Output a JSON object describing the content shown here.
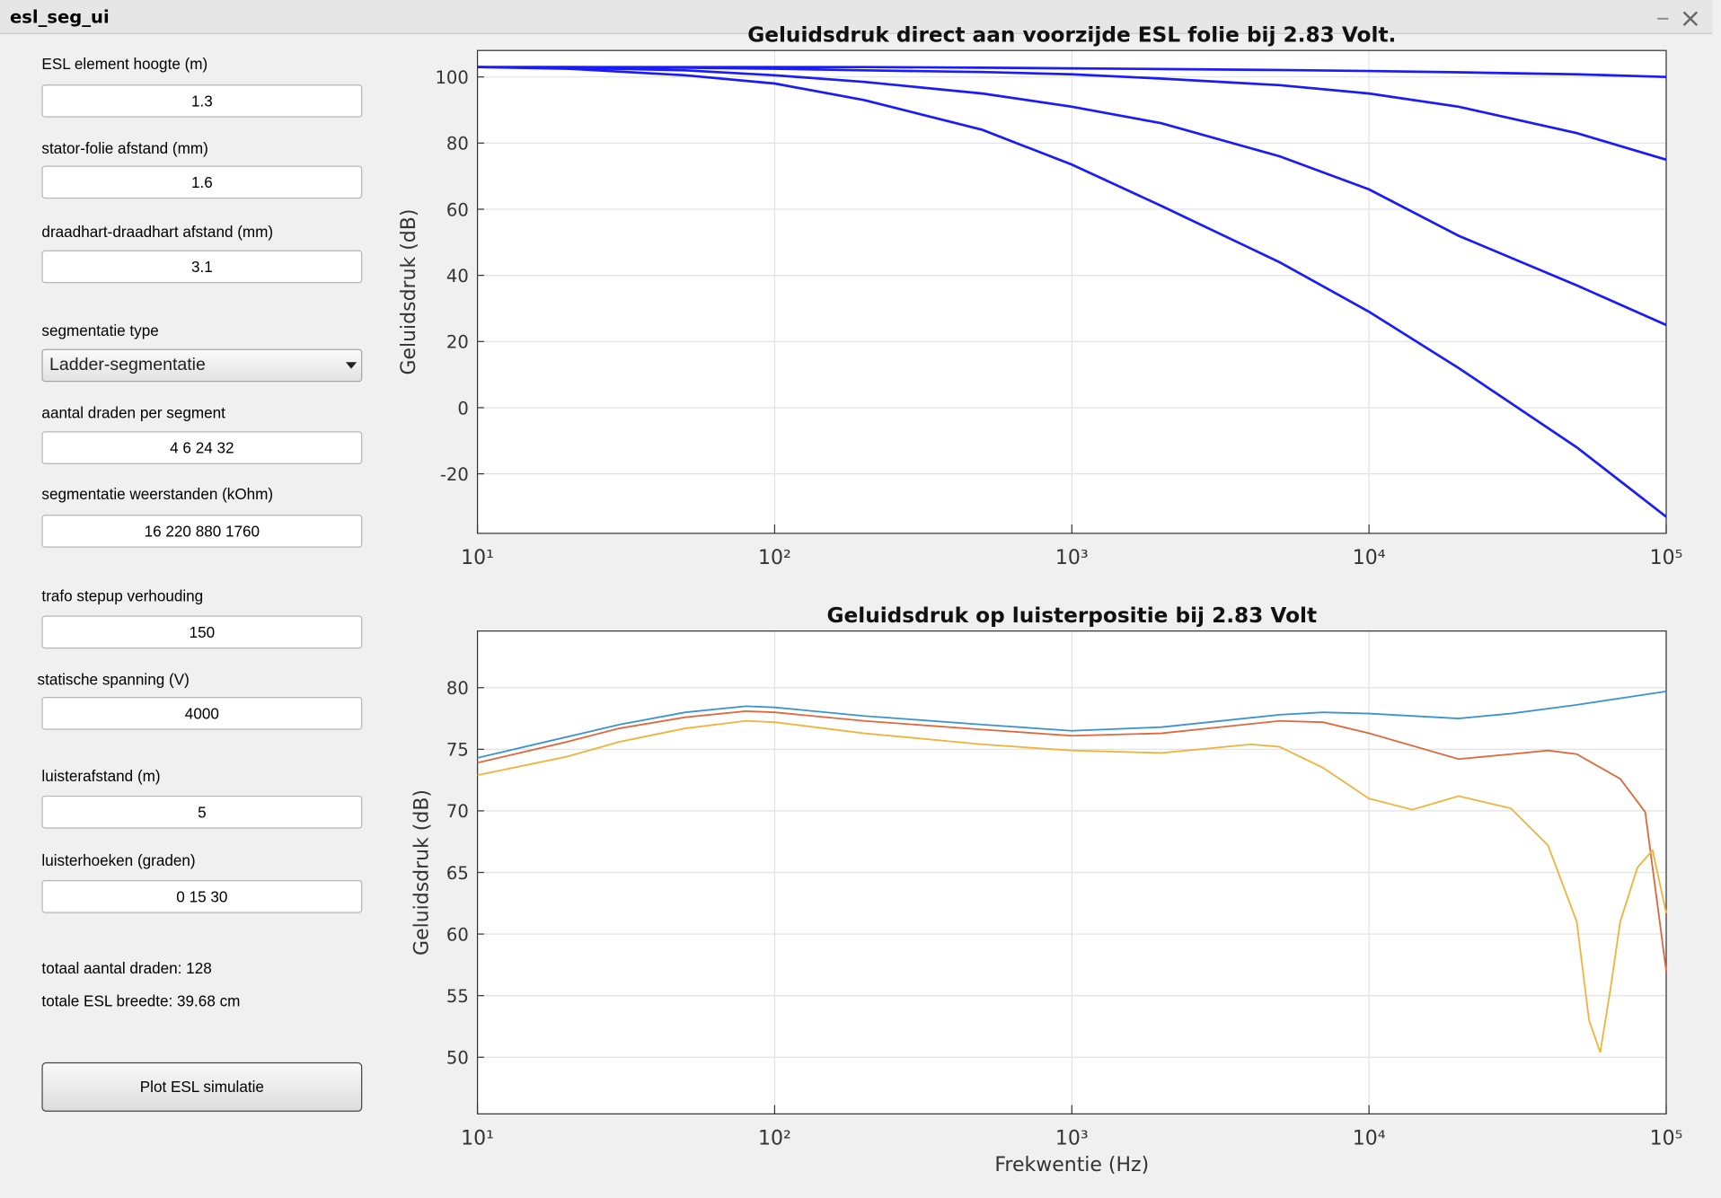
{
  "window": {
    "title": "esl_seg_ui"
  },
  "form": {
    "fields": [
      {
        "label": "ESL element hoogte (m)",
        "value": "1.3"
      },
      {
        "label": "stator-folie afstand (mm)",
        "value": "1.6"
      },
      {
        "label": "draadhart-draadhart afstand (mm)",
        "value": "3.1"
      },
      {
        "label": "segmentatie type",
        "value": "Ladder-segmentatie"
      },
      {
        "label": "aantal draden per segment",
        "value": "4 6 24 32"
      },
      {
        "label": "segmentatie weerstanden (kOhm)",
        "value": "16 220 880 1760"
      },
      {
        "label": "trafo stepup verhouding",
        "value": "150"
      },
      {
        "label": "statische  spanning (V)",
        "value": "4000"
      },
      {
        "label": "luisterafstand (m)",
        "value": "5"
      },
      {
        "label": "luisterhoeken (graden)",
        "value": "0 15 30"
      }
    ],
    "summary": [
      "totaal aantal draden: 128",
      "totale ESL breedte: 39.68 cm"
    ],
    "button": "Plot ESL simulatie"
  },
  "chart_data": [
    {
      "type": "line",
      "title": "Geluidsdruk direct aan voorzijde ESL folie bij 2.83 Volt.",
      "y_label": "Geluidsdruk (dB)",
      "log_x": true,
      "grid": true,
      "xlim": [
        10,
        100000
      ],
      "ylim": [
        -38,
        108
      ],
      "xticks": [
        {
          "value": 10,
          "label": "10¹"
        },
        {
          "value": 100,
          "label": "10²"
        },
        {
          "value": 1000,
          "label": "10³"
        },
        {
          "value": 10000,
          "label": "10⁴"
        },
        {
          "value": 100000,
          "label": "10⁵"
        }
      ],
      "yticks": [
        -20,
        0,
        20,
        40,
        60,
        80,
        100
      ],
      "x": [
        10,
        20,
        50,
        100,
        200,
        500,
        1000,
        2000,
        5000,
        10000,
        20000,
        50000,
        100000
      ],
      "series": [
        {
          "color": "#1a1aff",
          "values": [
            103,
            103,
            103,
            103,
            103,
            102.8,
            102.6,
            102.4,
            102.1,
            101.8,
            101.4,
            100.8,
            100
          ]
        },
        {
          "color": "#1a1aff",
          "values": [
            103,
            103,
            102.8,
            102.5,
            102,
            101.5,
            100.8,
            99.5,
            97.5,
            95,
            91,
            83,
            75
          ]
        },
        {
          "color": "#1a1aff",
          "values": [
            103,
            102.8,
            102,
            100.5,
            98.5,
            95,
            91,
            86,
            76,
            66,
            52,
            37,
            25
          ]
        },
        {
          "color": "#1a1aff",
          "values": [
            103,
            102.5,
            100.5,
            98,
            93,
            84,
            73.5,
            61,
            44,
            29,
            12,
            -12,
            -33
          ]
        }
      ]
    },
    {
      "type": "line",
      "title": "Geluidsdruk op luisterpositie bij 2.83 Volt",
      "x_label": "Frekwentie (Hz)",
      "y_label": "Geluidsdruk (dB)",
      "log_x": true,
      "grid": true,
      "xlim": [
        10,
        100000
      ],
      "ylim": [
        45.4,
        84.6
      ],
      "xticks": [
        {
          "value": 10,
          "label": "10¹"
        },
        {
          "value": 100,
          "label": "10²"
        },
        {
          "value": 1000,
          "label": "10³"
        },
        {
          "value": 10000,
          "label": "10⁴"
        },
        {
          "value": 100000,
          "label": "10⁵"
        }
      ],
      "yticks": [
        50,
        55,
        60,
        65,
        70,
        75,
        80
      ],
      "series": [
        {
          "color": "#3b94cf",
          "x": [
            10,
            20,
            30,
            50,
            80,
            100,
            200,
            500,
            1000,
            2000,
            5000,
            7000,
            10000,
            20000,
            30000,
            50000,
            100000
          ],
          "values": [
            74.3,
            76,
            77,
            78,
            78.5,
            78.4,
            77.7,
            77,
            76.5,
            76.8,
            77.8,
            78,
            77.9,
            77.5,
            77.9,
            78.6,
            79.7
          ]
        },
        {
          "color": "#e0683c",
          "x": [
            10,
            20,
            30,
            50,
            80,
            100,
            200,
            500,
            1000,
            2000,
            5000,
            7000,
            10000,
            20000,
            30000,
            40000,
            50000,
            70000,
            85000,
            100000
          ],
          "values": [
            73.9,
            75.6,
            76.7,
            77.6,
            78.1,
            78,
            77.3,
            76.6,
            76.1,
            76.3,
            77.3,
            77.2,
            76.3,
            74.2,
            74.6,
            74.9,
            74.6,
            72.6,
            69.9,
            57
          ]
        },
        {
          "color": "#f0b43c",
          "x": [
            10,
            20,
            30,
            50,
            80,
            100,
            200,
            500,
            1000,
            2000,
            4000,
            5000,
            7000,
            10000,
            14000,
            20000,
            30000,
            40000,
            50000,
            55000,
            60000,
            65000,
            70000,
            80000,
            90000,
            100000
          ],
          "values": [
            72.9,
            74.4,
            75.6,
            76.7,
            77.3,
            77.2,
            76.3,
            75.4,
            74.9,
            74.7,
            75.4,
            75.2,
            73.5,
            71,
            70.1,
            71.2,
            70.2,
            67.2,
            61,
            53,
            50.4,
            55.6,
            61,
            65.4,
            66.8,
            61.7
          ]
        }
      ]
    }
  ]
}
